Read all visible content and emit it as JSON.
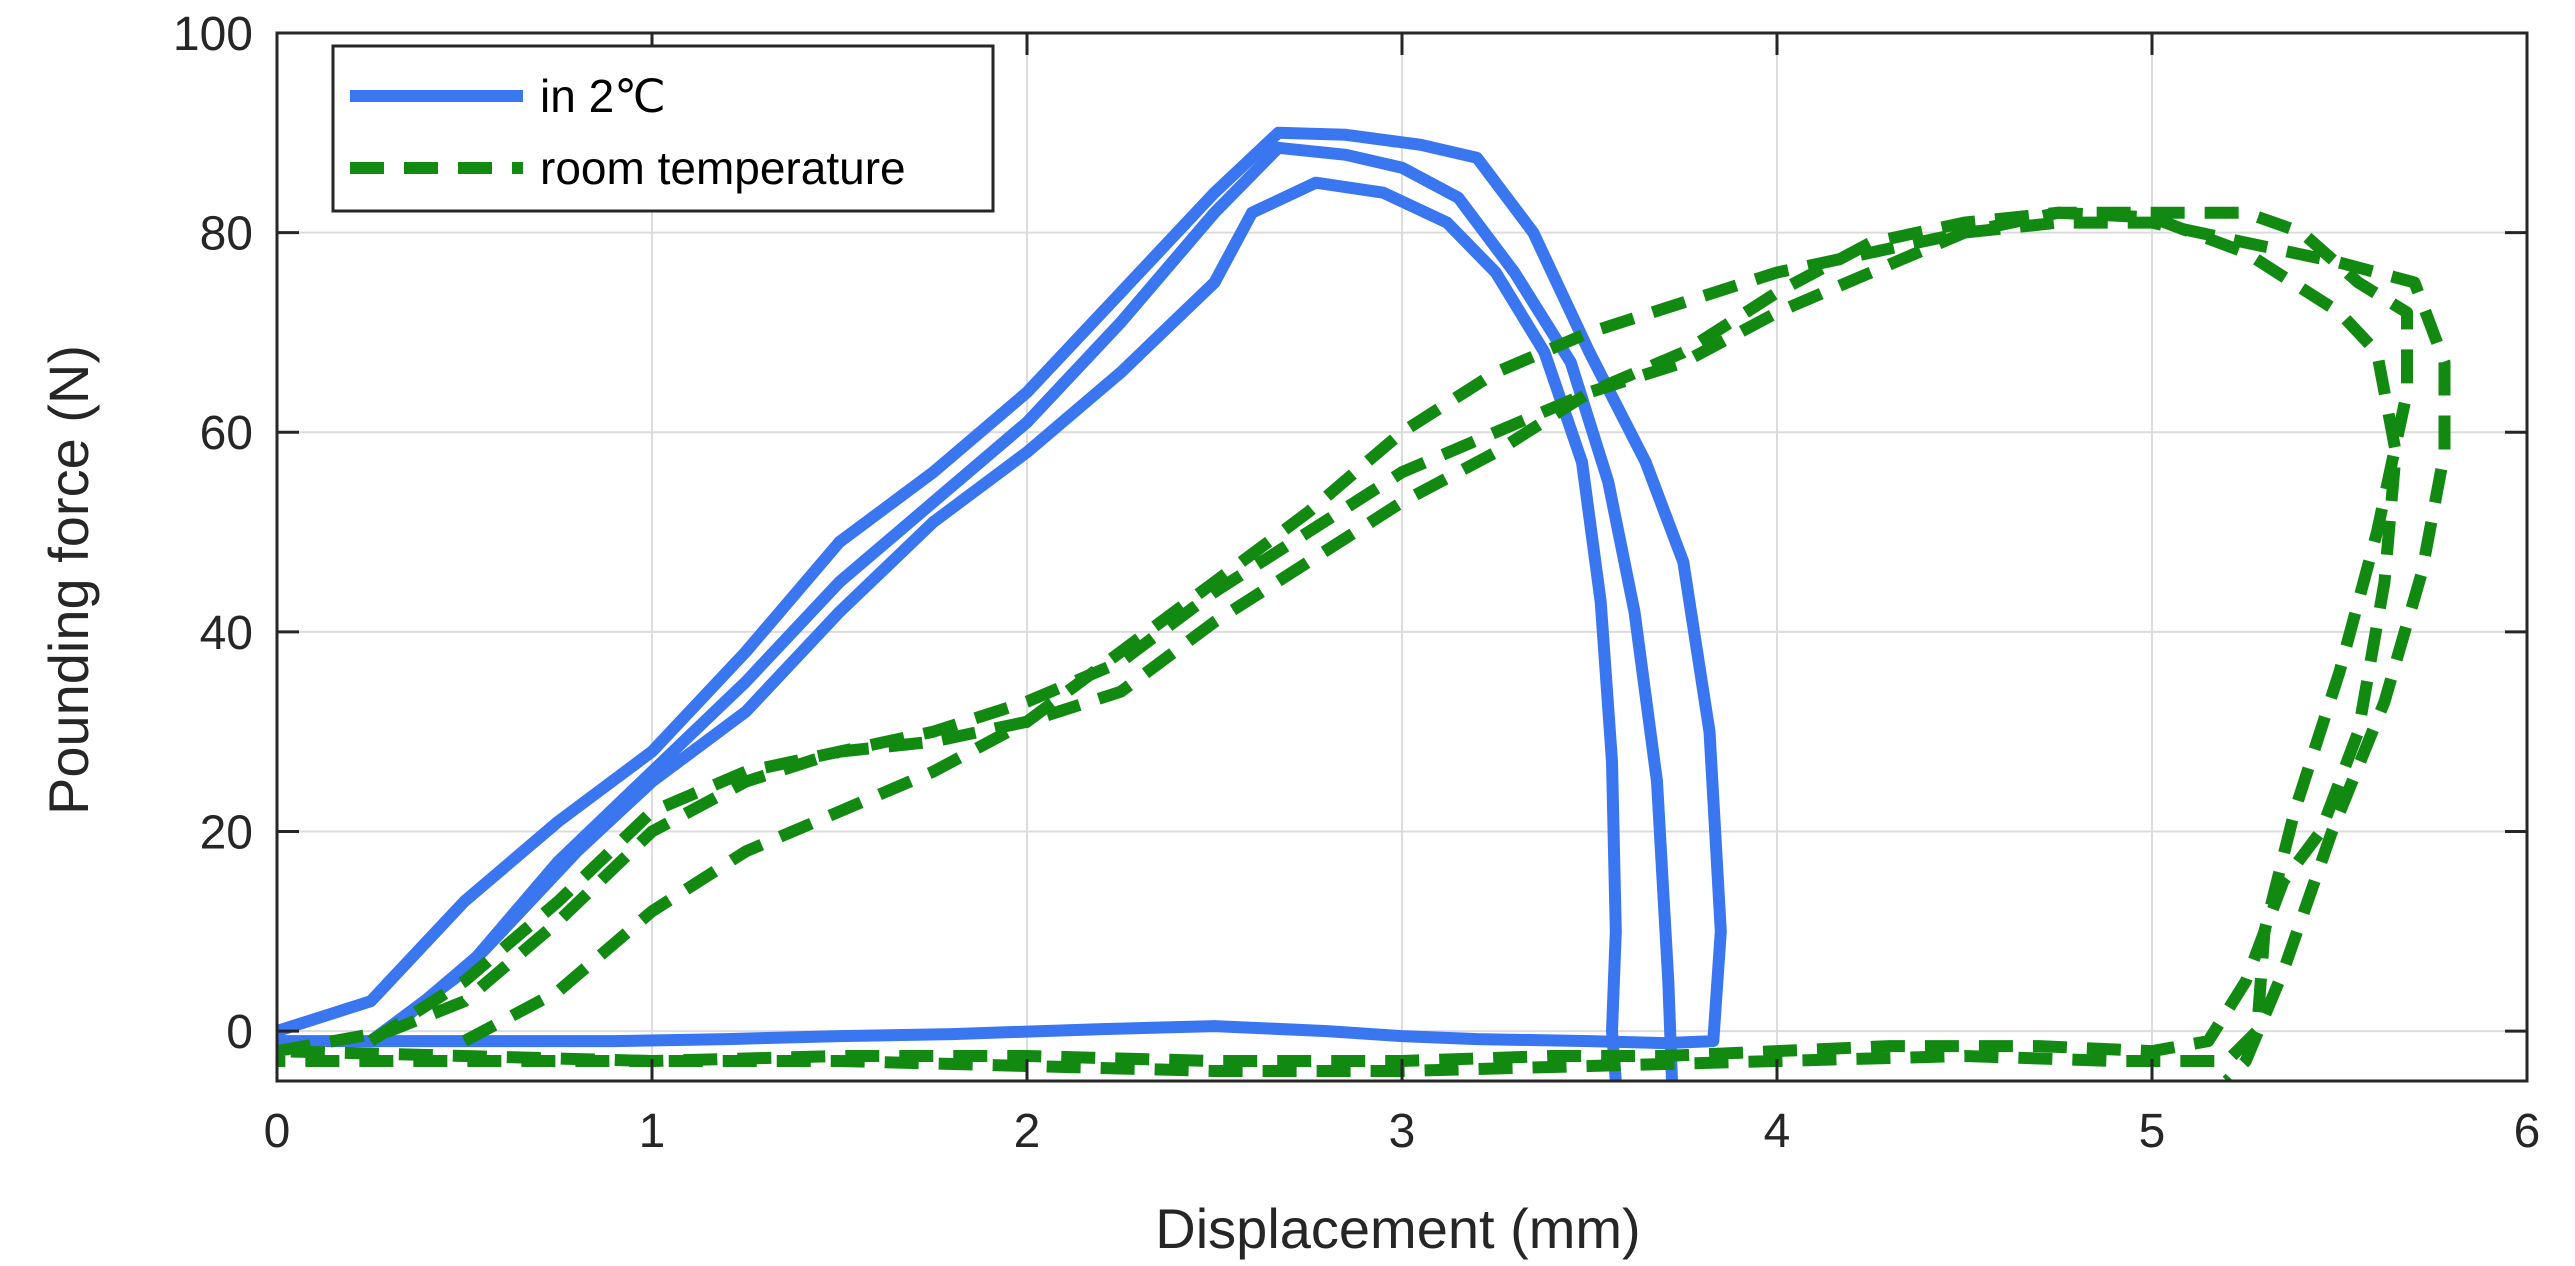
{
  "chart_data": {
    "type": "line",
    "title": "",
    "xlabel": "Displacement (mm)",
    "ylabel": "Pounding force (N)",
    "xlim": [
      0,
      6
    ],
    "ylim": [
      -5,
      100
    ],
    "xticks": [
      0,
      1,
      2,
      3,
      4,
      5,
      6
    ],
    "yticks": [
      0,
      20,
      40,
      60,
      80,
      100
    ],
    "xtick_labels": [
      "0",
      "1",
      "2",
      "3",
      "4",
      "5",
      "6"
    ],
    "ytick_labels": [
      "0",
      "20",
      "40",
      "60",
      "80",
      "100"
    ],
    "grid": true,
    "legend_position": "top-left",
    "series": [
      {
        "name": "in 2℃",
        "color": "#3a76f0",
        "dash": "solid",
        "loops": [
          [
            [
              0,
              0
            ],
            [
              0.25,
              3
            ],
            [
              0.5,
              13
            ],
            [
              0.75,
              21
            ],
            [
              1,
              28
            ],
            [
              1.25,
              38
            ],
            [
              1.5,
              49
            ],
            [
              1.75,
              56
            ],
            [
              2,
              64
            ],
            [
              2.25,
              74
            ],
            [
              2.5,
              84
            ],
            [
              2.67,
              90
            ],
            [
              2.85,
              89.8
            ],
            [
              3.05,
              88.8
            ],
            [
              3.2,
              87.5
            ],
            [
              3.35,
              80
            ],
            [
              3.5,
              68
            ],
            [
              3.65,
              57
            ],
            [
              3.75,
              47
            ],
            [
              3.82,
              30
            ],
            [
              3.85,
              10
            ],
            [
              3.83,
              -1
            ],
            [
              3.7,
              -1.2
            ],
            [
              3.5,
              -1
            ],
            [
              3.2,
              -0.8
            ],
            [
              3.0,
              -0.5
            ],
            [
              2.8,
              0
            ],
            [
              2.5,
              0.5
            ],
            [
              2.2,
              0.2
            ],
            [
              1.8,
              -0.3
            ],
            [
              1.5,
              -0.5
            ],
            [
              1.2,
              -0.8
            ],
            [
              0.9,
              -1
            ],
            [
              0.6,
              -1
            ],
            [
              0.3,
              -1
            ],
            [
              0,
              -1
            ]
          ],
          [
            [
              0.25,
              -1
            ],
            [
              0.5,
              6
            ],
            [
              0.75,
              17
            ],
            [
              1,
              26
            ],
            [
              1.25,
              35
            ],
            [
              1.5,
              45
            ],
            [
              1.75,
              53
            ],
            [
              2,
              61
            ],
            [
              2.25,
              71
            ],
            [
              2.5,
              82
            ],
            [
              2.67,
              88.5
            ],
            [
              2.85,
              87.8
            ],
            [
              3.0,
              86.5
            ],
            [
              3.15,
              83.5
            ],
            [
              3.3,
              76
            ],
            [
              3.45,
              67
            ],
            [
              3.55,
              55
            ],
            [
              3.62,
              42
            ],
            [
              3.68,
              25
            ],
            [
              3.71,
              5
            ],
            [
              3.72,
              -5
            ]
          ],
          [
            [
              0.3,
              0
            ],
            [
              0.55,
              8
            ],
            [
              0.8,
              18
            ],
            [
              1,
              25
            ],
            [
              1.25,
              32
            ],
            [
              1.5,
              42
            ],
            [
              1.75,
              51
            ],
            [
              2,
              58
            ],
            [
              2.25,
              66
            ],
            [
              2.5,
              75
            ],
            [
              2.6,
              82
            ],
            [
              2.77,
              85
            ],
            [
              2.95,
              84
            ],
            [
              3.12,
              81
            ],
            [
              3.25,
              76
            ],
            [
              3.38,
              68
            ],
            [
              3.48,
              57
            ],
            [
              3.53,
              43
            ],
            [
              3.56,
              27
            ],
            [
              3.57,
              10
            ],
            [
              3.56,
              0
            ],
            [
              3.57,
              -5
            ]
          ]
        ]
      },
      {
        "name": "room temperature",
        "color": "#128a12",
        "dash": "dashed",
        "loops": [
          [
            [
              0,
              -2
            ],
            [
              0.3,
              0
            ],
            [
              0.5,
              3
            ],
            [
              0.75,
              11
            ],
            [
              1,
              20
            ],
            [
              1.25,
              25
            ],
            [
              1.5,
              28
            ],
            [
              1.75,
              29
            ],
            [
              2,
              31
            ],
            [
              2.25,
              34
            ],
            [
              2.5,
              41
            ],
            [
              2.75,
              47
            ],
            [
              3,
              53
            ],
            [
              3.25,
              58
            ],
            [
              3.5,
              64
            ],
            [
              3.75,
              68
            ],
            [
              4,
              74
            ],
            [
              4.25,
              79
            ],
            [
              4.5,
              81
            ],
            [
              4.75,
              82
            ],
            [
              5,
              81.5
            ],
            [
              5.25,
              78
            ],
            [
              5.5,
              72
            ],
            [
              5.6,
              68
            ],
            [
              5.65,
              58
            ],
            [
              5.62,
              45
            ],
            [
              5.55,
              30
            ],
            [
              5.45,
              20
            ],
            [
              5.35,
              15
            ],
            [
              5.25,
              5
            ],
            [
              5.15,
              -1
            ],
            [
              5.0,
              -2
            ],
            [
              4.7,
              -1.5
            ],
            [
              4.3,
              -1.5
            ],
            [
              4.0,
              -2
            ],
            [
              3.7,
              -2.5
            ],
            [
              3.4,
              -2.5
            ],
            [
              3.0,
              -3
            ],
            [
              2.5,
              -3
            ],
            [
              2.0,
              -2.5
            ],
            [
              1.5,
              -2.5
            ],
            [
              1.0,
              -3
            ],
            [
              0.5,
              -3
            ],
            [
              0,
              -3
            ]
          ],
          [
            [
              0.25,
              -1
            ],
            [
              0.5,
              5
            ],
            [
              0.75,
              13
            ],
            [
              1,
              22
            ],
            [
              1.25,
              26
            ],
            [
              1.5,
              28
            ],
            [
              1.75,
              30
            ],
            [
              2,
              33
            ],
            [
              2.25,
              37
            ],
            [
              2.5,
              44
            ],
            [
              2.75,
              50
            ],
            [
              3,
              56
            ],
            [
              3.25,
              60
            ],
            [
              3.5,
              64
            ],
            [
              3.75,
              67
            ],
            [
              4,
              72
            ],
            [
              4.25,
              76
            ],
            [
              4.5,
              80
            ],
            [
              4.75,
              82
            ],
            [
              5,
              82
            ],
            [
              5.25,
              82
            ],
            [
              5.4,
              80
            ],
            [
              5.55,
              75
            ],
            [
              5.68,
              72
            ],
            [
              5.68,
              64
            ],
            [
              5.6,
              50
            ],
            [
              5.5,
              36
            ],
            [
              5.38,
              22
            ],
            [
              5.3,
              10
            ],
            [
              5.28,
              0
            ],
            [
              5.2,
              -3
            ],
            [
              4.9,
              -3
            ],
            [
              4.5,
              -2.5
            ],
            [
              4.0,
              -3
            ],
            [
              3.5,
              -3.5
            ],
            [
              3.0,
              -4
            ],
            [
              2.5,
              -4
            ],
            [
              2.0,
              -3.5
            ],
            [
              1.5,
              -3
            ],
            [
              1.0,
              -3
            ],
            [
              0.5,
              -2.5
            ],
            [
              0,
              -2
            ]
          ],
          [
            [
              0.5,
              -1
            ],
            [
              0.75,
              4
            ],
            [
              1,
              12
            ],
            [
              1.25,
              18
            ],
            [
              1.5,
              22
            ],
            [
              1.75,
              26
            ],
            [
              2,
              31
            ],
            [
              2.25,
              38
            ],
            [
              2.5,
              45
            ],
            [
              2.75,
              52
            ],
            [
              3,
              60
            ],
            [
              3.25,
              66
            ],
            [
              3.5,
              70
            ],
            [
              3.75,
              73
            ],
            [
              4,
              76
            ],
            [
              4.25,
              78
            ],
            [
              4.5,
              80
            ],
            [
              4.75,
              81
            ],
            [
              5,
              81
            ],
            [
              5.25,
              79
            ],
            [
              5.5,
              77
            ],
            [
              5.7,
              75
            ],
            [
              5.78,
              67
            ],
            [
              5.78,
              58
            ],
            [
              5.72,
              46
            ],
            [
              5.62,
              33
            ],
            [
              5.48,
              20
            ],
            [
              5.35,
              6
            ],
            [
              5.25,
              -3
            ],
            [
              5.2,
              -5
            ]
          ]
        ]
      }
    ]
  }
}
